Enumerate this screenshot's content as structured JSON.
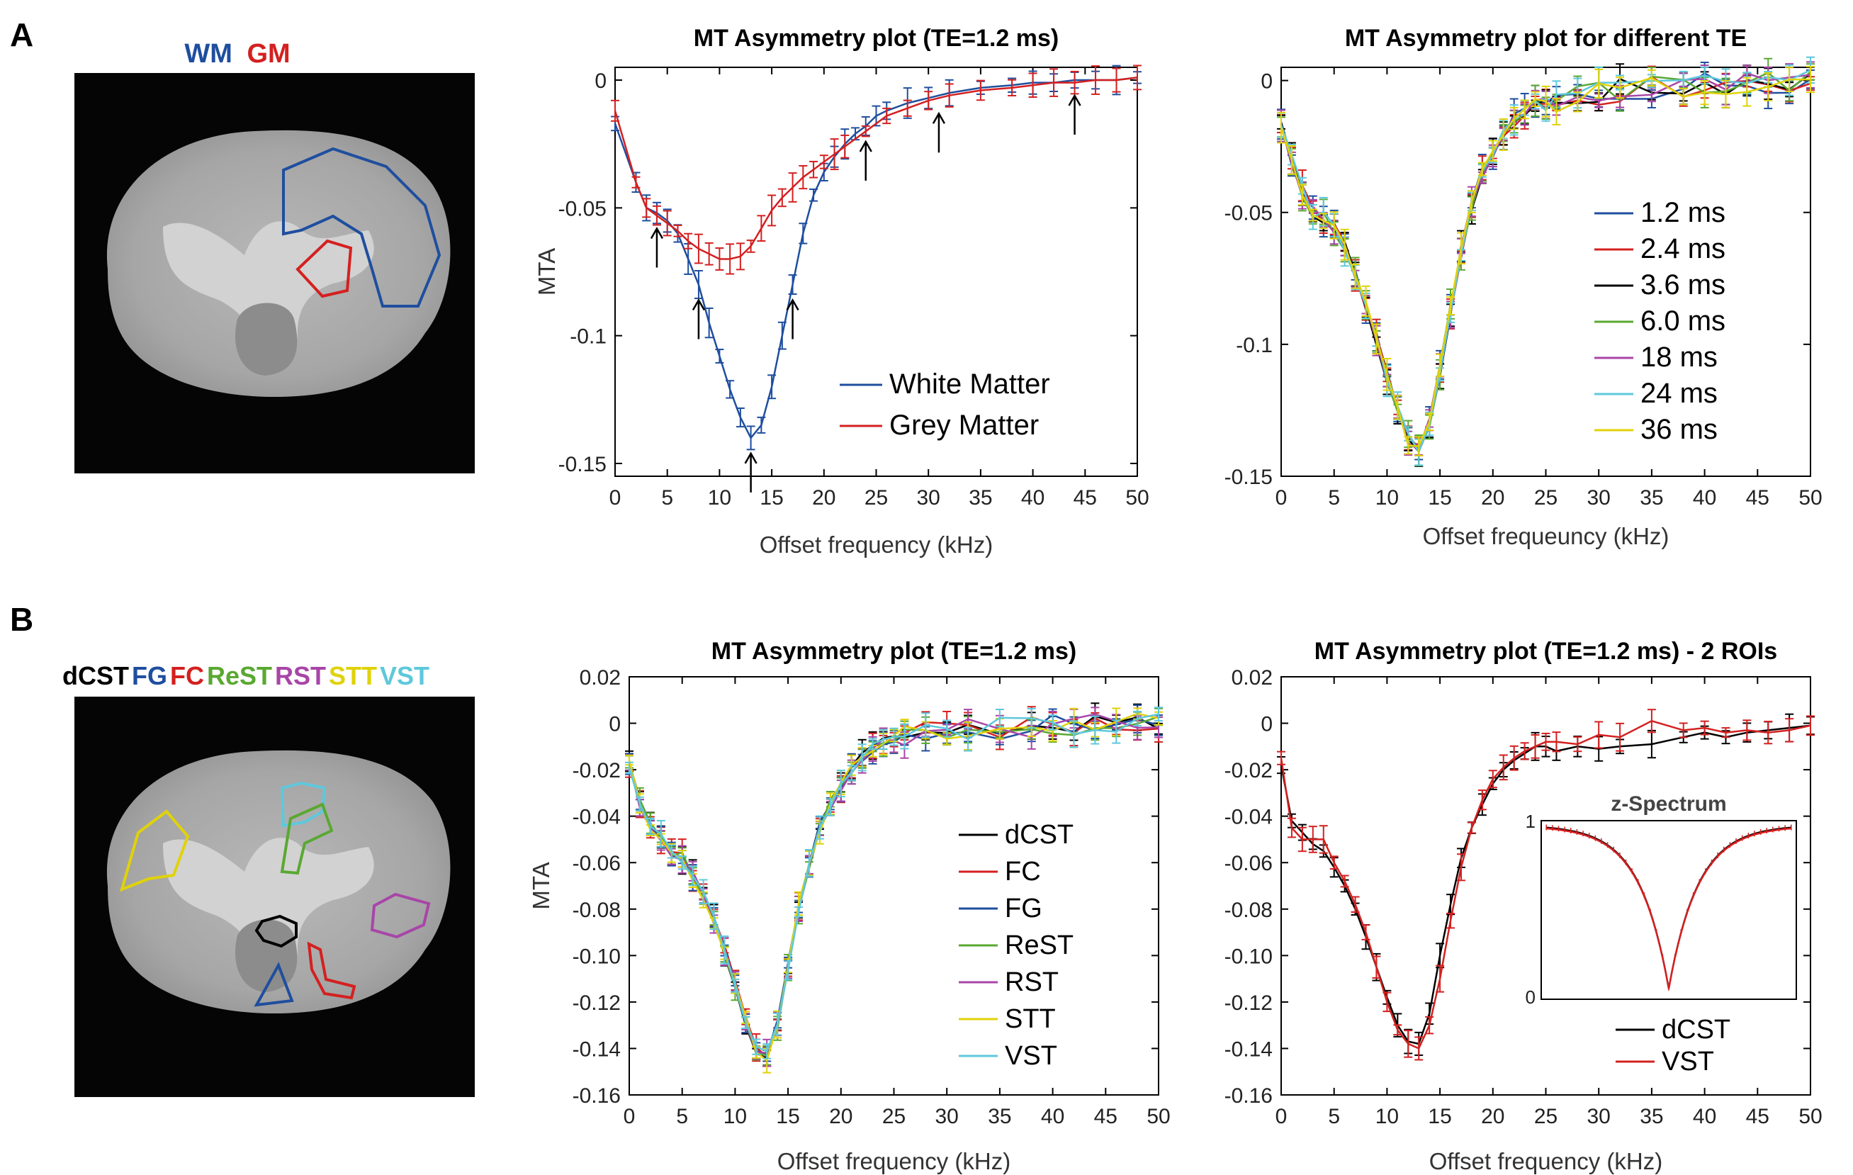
{
  "panel_a_label": "A",
  "panel_b_label": "B",
  "roi_legend_a": [
    {
      "label": "WM",
      "color": "#1f4e9e"
    },
    {
      "label": "GM",
      "color": "#d42020"
    }
  ],
  "roi_legend_b": [
    {
      "label": "dCST",
      "color": "#000000"
    },
    {
      "label": "FG",
      "color": "#1f4e9e"
    },
    {
      "label": "FC",
      "color": "#d42020"
    },
    {
      "label": "ReST",
      "color": "#5aa832"
    },
    {
      "label": "RST",
      "color": "#a845a8"
    },
    {
      "label": "STT",
      "color": "#e0d20a"
    },
    {
      "label": "VST",
      "color": "#5ec8dc"
    }
  ],
  "chart_data": [
    {
      "type": "line",
      "title": "MT Asymmetry plot (TE=1.2 ms)",
      "xlabel": "Offset frequency (kHz)",
      "ylabel": "MTA",
      "xlim": [
        0,
        50
      ],
      "ylim": [
        -0.155,
        0.005
      ],
      "xticks": [
        "0",
        "5",
        "10",
        "15",
        "20",
        "25",
        "30",
        "35",
        "40",
        "45",
        "50"
      ],
      "yticks": [
        "0",
        "-0.05",
        "-0.1",
        "-0.15"
      ],
      "ytick_values": [
        0,
        -0.05,
        -0.1,
        -0.15
      ],
      "series": [
        {
          "name": "White Matter",
          "color": "#1f4e9e",
          "x": [
            0,
            2,
            3,
            4,
            5,
            6,
            7,
            8,
            9,
            10,
            11,
            12,
            13,
            14,
            15,
            16,
            17,
            18,
            19,
            20,
            21,
            22,
            23,
            24,
            25,
            26,
            28,
            30,
            32,
            35,
            38,
            40,
            42,
            44,
            46,
            48,
            50
          ],
          "y": [
            -0.017,
            -0.04,
            -0.05,
            -0.052,
            -0.055,
            -0.06,
            -0.07,
            -0.08,
            -0.095,
            -0.108,
            -0.121,
            -0.132,
            -0.14,
            -0.135,
            -0.12,
            -0.1,
            -0.08,
            -0.06,
            -0.045,
            -0.036,
            -0.03,
            -0.025,
            -0.021,
            -0.018,
            -0.014,
            -0.012,
            -0.009,
            -0.007,
            -0.005,
            -0.003,
            -0.002,
            -0.001,
            -0.001,
            0.0,
            0.0,
            0.0,
            0.001
          ]
        },
        {
          "name": "Grey Matter",
          "color": "#d42020",
          "x": [
            0,
            2,
            3,
            4,
            5,
            6,
            7,
            8,
            9,
            10,
            11,
            12,
            13,
            14,
            15,
            16,
            17,
            18,
            19,
            20,
            21,
            22,
            24,
            26,
            28,
            30,
            32,
            35,
            38,
            40,
            42,
            44,
            46,
            48,
            50
          ],
          "y": [
            -0.012,
            -0.04,
            -0.05,
            -0.053,
            -0.056,
            -0.059,
            -0.063,
            -0.066,
            -0.068,
            -0.07,
            -0.07,
            -0.069,
            -0.065,
            -0.058,
            -0.051,
            -0.046,
            -0.042,
            -0.038,
            -0.035,
            -0.032,
            -0.029,
            -0.026,
            -0.02,
            -0.014,
            -0.011,
            -0.008,
            -0.006,
            -0.004,
            -0.003,
            -0.002,
            -0.001,
            -0.001,
            0.0,
            0.0,
            0.001
          ]
        }
      ],
      "arrows_at_x": [
        4,
        8,
        13,
        17,
        24,
        31,
        44
      ]
    },
    {
      "type": "line",
      "title": "MT Asymmetry plot for different TE",
      "xlabel": "Offset frequeuncy (kHz)",
      "ylabel": "",
      "xlim": [
        0,
        50
      ],
      "ylim": [
        -0.15,
        0.005
      ],
      "xticks": [
        "0",
        "5",
        "10",
        "15",
        "20",
        "25",
        "30",
        "35",
        "40",
        "45",
        "50"
      ],
      "yticks": [
        "0",
        "-0.05",
        "-0.1",
        "-0.15"
      ],
      "ytick_values": [
        0,
        -0.05,
        -0.1,
        -0.15
      ],
      "series": [
        {
          "name": "1.2 ms",
          "color": "#1f4e9e"
        },
        {
          "name": "2.4 ms",
          "color": "#d42020"
        },
        {
          "name": "3.6 ms",
          "color": "#000000"
        },
        {
          "name": "6.0 ms",
          "color": "#5aa832"
        },
        {
          "name": "18 ms",
          "color": "#a845a8"
        },
        {
          "name": "24 ms",
          "color": "#5ec8dc"
        },
        {
          "name": "36 ms",
          "color": "#e0d20a"
        }
      ],
      "base_x": [
        0,
        1,
        2,
        3,
        4,
        5,
        6,
        7,
        8,
        9,
        10,
        11,
        12,
        13,
        14,
        15,
        16,
        17,
        18,
        19,
        20,
        21,
        22,
        23,
        24,
        25,
        26,
        28,
        30,
        32,
        35,
        38,
        40,
        42,
        44,
        46,
        48,
        50
      ],
      "base_y": [
        -0.017,
        -0.03,
        -0.042,
        -0.05,
        -0.052,
        -0.056,
        -0.063,
        -0.073,
        -0.085,
        -0.098,
        -0.112,
        -0.125,
        -0.136,
        -0.14,
        -0.13,
        -0.11,
        -0.087,
        -0.065,
        -0.047,
        -0.035,
        -0.027,
        -0.02,
        -0.015,
        -0.011,
        -0.009,
        -0.009,
        -0.008,
        -0.006,
        -0.005,
        -0.004,
        -0.003,
        -0.002,
        -0.001,
        -0.001,
        0.0,
        0.0,
        0.0,
        0.0
      ]
    },
    {
      "type": "line",
      "title": "MT Asymmetry plot (TE=1.2 ms)",
      "xlabel": "Offset frequency (kHz)",
      "ylabel": "MTA",
      "xlim": [
        0,
        50
      ],
      "ylim": [
        -0.16,
        0.02
      ],
      "xticks": [
        "0",
        "5",
        "10",
        "15",
        "20",
        "25",
        "30",
        "35",
        "40",
        "45",
        "50"
      ],
      "yticks": [
        "0.02",
        "0",
        "-0.02",
        "-0.04",
        "-0.06",
        "-0.08",
        "-0.10",
        "-0.12",
        "-0.14",
        "-0.16"
      ],
      "ytick_values": [
        0.02,
        0,
        -0.02,
        -0.04,
        -0.06,
        -0.08,
        -0.1,
        -0.12,
        -0.14,
        -0.16
      ],
      "series": [
        {
          "name": "dCST",
          "color": "#000000"
        },
        {
          "name": "FC",
          "color": "#d42020"
        },
        {
          "name": "FG",
          "color": "#1f4e9e"
        },
        {
          "name": "ReST",
          "color": "#5aa832"
        },
        {
          "name": "RST",
          "color": "#a845a8"
        },
        {
          "name": "STT",
          "color": "#e0d20a"
        },
        {
          "name": "VST",
          "color": "#5ec8dc"
        }
      ],
      "base_x": [
        0,
        1,
        2,
        3,
        4,
        5,
        6,
        7,
        8,
        9,
        10,
        11,
        12,
        13,
        14,
        15,
        16,
        17,
        18,
        19,
        20,
        21,
        22,
        23,
        24,
        25,
        26,
        28,
        30,
        32,
        35,
        38,
        40,
        42,
        44,
        46,
        48,
        50
      ],
      "base_y": [
        -0.017,
        -0.035,
        -0.045,
        -0.05,
        -0.055,
        -0.058,
        -0.066,
        -0.074,
        -0.085,
        -0.098,
        -0.112,
        -0.128,
        -0.14,
        -0.143,
        -0.13,
        -0.105,
        -0.08,
        -0.06,
        -0.045,
        -0.035,
        -0.027,
        -0.02,
        -0.015,
        -0.011,
        -0.008,
        -0.006,
        -0.005,
        -0.004,
        -0.004,
        -0.003,
        -0.002,
        -0.002,
        -0.001,
        -0.001,
        0.0,
        0.0,
        0.0,
        0.0
      ]
    },
    {
      "type": "line",
      "title": "MT Asymmetry plot (TE=1.2 ms) - 2 ROIs",
      "xlabel": "Offset frequency (kHz)",
      "ylabel": "",
      "xlim": [
        0,
        50
      ],
      "ylim": [
        -0.16,
        0.02
      ],
      "xticks": [
        "0",
        "5",
        "10",
        "15",
        "20",
        "25",
        "30",
        "35",
        "40",
        "45",
        "50"
      ],
      "yticks": [
        "0.02",
        "0",
        "-0.02",
        "-0.04",
        "-0.06",
        "-0.08",
        "-0.10",
        "-0.12",
        "-0.14",
        "-0.16"
      ],
      "ytick_values": [
        0.02,
        0,
        -0.02,
        -0.04,
        -0.06,
        -0.08,
        -0.1,
        -0.12,
        -0.14,
        -0.16
      ],
      "series": [
        {
          "name": "dCST",
          "color": "#000000",
          "x": [
            0,
            1,
            2,
            3,
            4,
            5,
            6,
            7,
            8,
            9,
            10,
            11,
            12,
            13,
            14,
            15,
            16,
            17,
            18,
            19,
            20,
            21,
            22,
            23,
            24,
            25,
            26,
            28,
            30,
            32,
            35,
            38,
            40,
            42,
            44,
            46,
            48,
            50
          ],
          "y": [
            -0.018,
            -0.042,
            -0.047,
            -0.052,
            -0.055,
            -0.062,
            -0.07,
            -0.08,
            -0.092,
            -0.105,
            -0.118,
            -0.13,
            -0.137,
            -0.138,
            -0.125,
            -0.1,
            -0.078,
            -0.058,
            -0.045,
            -0.035,
            -0.026,
            -0.02,
            -0.016,
            -0.013,
            -0.01,
            -0.01,
            -0.012,
            -0.01,
            -0.011,
            -0.01,
            -0.009,
            -0.006,
            -0.004,
            -0.006,
            -0.004,
            -0.003,
            -0.002,
            -0.001
          ]
        },
        {
          "name": "VST",
          "color": "#d42020",
          "x": [
            0,
            1,
            2,
            3,
            4,
            5,
            6,
            7,
            8,
            9,
            10,
            11,
            12,
            13,
            14,
            15,
            16,
            17,
            18,
            19,
            20,
            21,
            22,
            23,
            24,
            25,
            26,
            28,
            30,
            32,
            35,
            38,
            40,
            42,
            44,
            46,
            48,
            50
          ],
          "y": [
            -0.015,
            -0.045,
            -0.05,
            -0.05,
            -0.05,
            -0.06,
            -0.068,
            -0.078,
            -0.09,
            -0.105,
            -0.12,
            -0.132,
            -0.138,
            -0.14,
            -0.13,
            -0.11,
            -0.085,
            -0.062,
            -0.045,
            -0.033,
            -0.024,
            -0.019,
            -0.015,
            -0.012,
            -0.01,
            -0.008,
            -0.008,
            -0.009,
            -0.005,
            -0.006,
            0.001,
            -0.003,
            -0.002,
            -0.004,
            -0.003,
            -0.004,
            -0.003,
            -0.001
          ]
        }
      ],
      "inset": {
        "title": "z-Spectrum",
        "yticks": [
          "1",
          "0"
        ],
        "dip_min": 0.05
      }
    }
  ]
}
